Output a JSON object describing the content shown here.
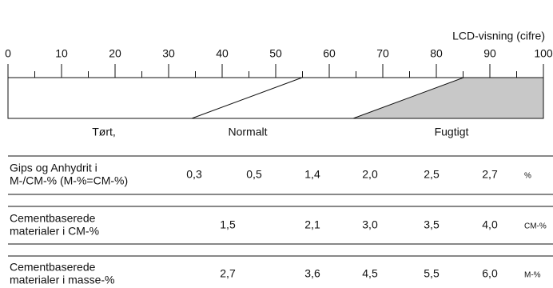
{
  "header": {
    "caption": "LCD-visning (cifre)"
  },
  "scale": {
    "ticks": [
      0,
      10,
      20,
      30,
      40,
      50,
      60,
      70,
      80,
      90,
      100
    ]
  },
  "zones": [
    "Tørt,",
    "Normalt",
    "Fugtigt"
  ],
  "table": {
    "rows": [
      {
        "label": [
          "Gips og Anhydrit i",
          "M-/CM-% (M-%=CM-%)"
        ],
        "values": [
          "0,3",
          "0,5",
          "1,4",
          "2,0",
          "2,5",
          "2,7"
        ],
        "unit": "%"
      },
      {
        "label": [
          "Cementbaserede",
          "materialer i CM-%"
        ],
        "values": [
          "1,5",
          "2,1",
          "3,0",
          "3,5",
          "4,0"
        ],
        "unit": "CM-%"
      },
      {
        "label": [
          "Cementbaserede",
          "materialer i masse-%"
        ],
        "values": [
          "2,7",
          "3,6",
          "4,5",
          "5,5",
          "6,0"
        ],
        "unit": "M-%"
      }
    ]
  }
}
